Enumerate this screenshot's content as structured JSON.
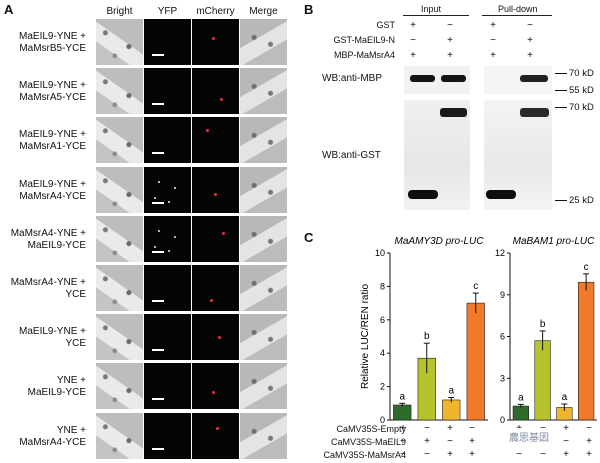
{
  "panel_a": {
    "letter": "A",
    "columns": [
      "Bright",
      "YFP",
      "mCherry",
      "Merge"
    ],
    "rows": [
      {
        "line1": "MaEIL9-YNE +",
        "line2": "MaMsrB5-YCE"
      },
      {
        "line1": "MaEIL9-YNE +",
        "line2": "MaMsrA5-YCE"
      },
      {
        "line1": "MaEIL9-YNE +",
        "line2": "MaMsrA1-YCE"
      },
      {
        "line1": "MaEIL9-YNE +",
        "line2": "MaMsrA4-YCE"
      },
      {
        "line1": "MaMsrA4-YNE +",
        "line2": "MaEIL9-YCE"
      },
      {
        "line1": "MaMsrA4-YNE +",
        "line2": "YCE"
      },
      {
        "line1": "MaEIL9-YNE +",
        "line2": "YCE"
      },
      {
        "line1": "YNE +",
        "line2": "MaEIL9-YCE"
      },
      {
        "line1": "YNE +",
        "line2": "MaMsrA4-YCE"
      }
    ]
  },
  "panel_b": {
    "letter": "B",
    "group_input": "Input",
    "group_pulldown": "Pull-down",
    "row_labels": [
      "GST",
      "GST-MaEIL9-N",
      "MBP-MaMsrA4"
    ],
    "signs": [
      [
        "+",
        "−",
        "+",
        "−"
      ],
      [
        "−",
        "+",
        "−",
        "+"
      ],
      [
        "+",
        "+",
        "+",
        "+"
      ]
    ],
    "blot_mbp_label": "WB:anti-MBP",
    "blot_gst_label": "WB:anti-GST",
    "mw_70a": "70 kD",
    "mw_55": "55 kD",
    "mw_70b": "70 kD",
    "mw_25": "25 kD"
  },
  "panel_c": {
    "letter": "C",
    "watermark": "農思基因",
    "legend_rows": [
      "CaMV35S-Empty",
      "CaMV35S-MaEIL9",
      "CaMV35S-MaMsrA4"
    ],
    "legend_signs": [
      [
        "+",
        "−",
        "+",
        "−"
      ],
      [
        "−",
        "+",
        "−",
        "+"
      ],
      [
        "−",
        "−",
        "+",
        "+"
      ]
    ]
  },
  "chart_data": [
    {
      "type": "bar",
      "title": "MaAMY3D pro-LUC",
      "ylabel": "Relative LUC/REN ratio",
      "ylim": [
        0,
        10
      ],
      "yticks": [
        0,
        2,
        4,
        6,
        8,
        10
      ],
      "values": [
        0.9,
        3.7,
        1.2,
        7.0
      ],
      "errors": [
        0.1,
        0.9,
        0.15,
        0.6
      ],
      "letters": [
        "a",
        "b",
        "a",
        "c"
      ],
      "colors": [
        "#2e6b2a",
        "#b6c42c",
        "#f0b52c",
        "#f07a2a"
      ]
    },
    {
      "type": "bar",
      "title": "MaBAM1 pro-LUC",
      "ylabel": "",
      "ylim": [
        0,
        12
      ],
      "yticks": [
        0,
        3,
        6,
        9,
        12
      ],
      "values": [
        1.0,
        5.7,
        0.9,
        9.9
      ],
      "errors": [
        0.12,
        0.7,
        0.25,
        0.6
      ],
      "letters": [
        "a",
        "b",
        "a",
        "c"
      ],
      "colors": [
        "#2e6b2a",
        "#b6c42c",
        "#f0b52c",
        "#f07a2a"
      ]
    }
  ]
}
